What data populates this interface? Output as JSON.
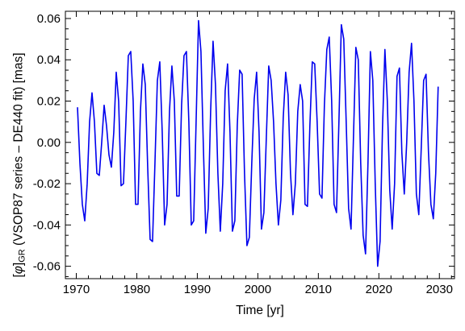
{
  "chart_data": {
    "type": "line",
    "title": "",
    "xlabel": "Time [yr]",
    "ylabel": {
      "prefix": "[",
      "symbol": "φ",
      "suffix": "]",
      "subscript": "GR",
      "rest": " (VSOP87 series – DE440 fit) [mas]"
    },
    "xlim": [
      1968.2,
      2032.5
    ],
    "ylim": [
      -0.066,
      0.0635
    ],
    "xticks": [
      1970,
      1980,
      1990,
      2000,
      2010,
      2020,
      2030
    ],
    "yticks": [
      -0.06,
      -0.04,
      -0.02,
      0.0,
      0.02,
      0.04,
      0.06
    ],
    "ytick_labels": [
      "-0.06",
      "-0.04",
      "-0.02",
      "0.00",
      "0.02",
      "0.04",
      "0.06"
    ],
    "grid": false,
    "legend": "none",
    "color": "#0000ee",
    "series": [
      {
        "points": [
          [
            1970.2,
            0.017
          ],
          [
            1970.6,
            -0.01
          ],
          [
            1971.0,
            -0.03
          ],
          [
            1971.4,
            -0.038
          ],
          [
            1971.8,
            -0.02
          ],
          [
            1972.2,
            0.01
          ],
          [
            1972.6,
            0.024
          ],
          [
            1973.0,
            0.01
          ],
          [
            1973.4,
            -0.015
          ],
          [
            1973.8,
            -0.016
          ],
          [
            1974.2,
            0.0
          ],
          [
            1974.6,
            0.018
          ],
          [
            1975.0,
            0.008
          ],
          [
            1975.4,
            -0.006
          ],
          [
            1975.8,
            -0.012
          ],
          [
            1976.2,
            0.005
          ],
          [
            1976.6,
            0.034
          ],
          [
            1977.0,
            0.02
          ],
          [
            1977.4,
            -0.021
          ],
          [
            1977.8,
            -0.02
          ],
          [
            1978.2,
            0.01
          ],
          [
            1978.6,
            0.042
          ],
          [
            1979.0,
            0.044
          ],
          [
            1979.4,
            0.02
          ],
          [
            1979.8,
            -0.03
          ],
          [
            1980.2,
            -0.03
          ],
          [
            1980.6,
            0.015
          ],
          [
            1981.0,
            0.038
          ],
          [
            1981.4,
            0.028
          ],
          [
            1981.8,
            -0.012
          ],
          [
            1982.2,
            -0.047
          ],
          [
            1982.6,
            -0.048
          ],
          [
            1983.0,
            -0.01
          ],
          [
            1983.4,
            0.03
          ],
          [
            1983.8,
            0.039
          ],
          [
            1984.2,
            0.005
          ],
          [
            1984.6,
            -0.04
          ],
          [
            1985.0,
            -0.03
          ],
          [
            1985.4,
            0.015
          ],
          [
            1985.8,
            0.037
          ],
          [
            1986.2,
            0.02
          ],
          [
            1986.6,
            -0.026
          ],
          [
            1987.0,
            -0.026
          ],
          [
            1987.4,
            0.018
          ],
          [
            1987.8,
            0.042
          ],
          [
            1988.2,
            0.044
          ],
          [
            1988.6,
            0.01
          ],
          [
            1989.0,
            -0.04
          ],
          [
            1989.4,
            -0.038
          ],
          [
            1989.8,
            0.01
          ],
          [
            1990.2,
            0.059
          ],
          [
            1990.6,
            0.044
          ],
          [
            1991.0,
            -0.002
          ],
          [
            1991.4,
            -0.044
          ],
          [
            1991.8,
            -0.032
          ],
          [
            1992.2,
            0.015
          ],
          [
            1992.6,
            0.049
          ],
          [
            1993.0,
            0.028
          ],
          [
            1993.4,
            -0.015
          ],
          [
            1993.8,
            -0.043
          ],
          [
            1994.2,
            -0.02
          ],
          [
            1994.6,
            0.025
          ],
          [
            1995.0,
            0.038
          ],
          [
            1995.4,
            0.005
          ],
          [
            1995.8,
            -0.043
          ],
          [
            1996.2,
            -0.038
          ],
          [
            1996.6,
            0.008
          ],
          [
            1997.0,
            0.035
          ],
          [
            1997.4,
            0.033
          ],
          [
            1997.8,
            -0.015
          ],
          [
            1998.2,
            -0.05
          ],
          [
            1998.6,
            -0.046
          ],
          [
            1999.0,
            -0.01
          ],
          [
            1999.4,
            0.021
          ],
          [
            1999.8,
            0.034
          ],
          [
            2000.2,
            0.005
          ],
          [
            2000.6,
            -0.042
          ],
          [
            2001.0,
            -0.034
          ],
          [
            2001.4,
            0.002
          ],
          [
            2001.8,
            0.037
          ],
          [
            2002.2,
            0.03
          ],
          [
            2002.6,
            0.01
          ],
          [
            2003.0,
            -0.02
          ],
          [
            2003.4,
            -0.04
          ],
          [
            2003.8,
            -0.028
          ],
          [
            2004.2,
            0.012
          ],
          [
            2004.6,
            0.034
          ],
          [
            2005.0,
            0.023
          ],
          [
            2005.4,
            -0.015
          ],
          [
            2005.8,
            -0.035
          ],
          [
            2006.2,
            -0.02
          ],
          [
            2006.6,
            0.015
          ],
          [
            2007.0,
            0.028
          ],
          [
            2007.4,
            0.02
          ],
          [
            2007.8,
            -0.03
          ],
          [
            2008.2,
            -0.031
          ],
          [
            2008.6,
            0.008
          ],
          [
            2009.0,
            0.039
          ],
          [
            2009.4,
            0.038
          ],
          [
            2009.8,
            0.01
          ],
          [
            2010.2,
            -0.025
          ],
          [
            2010.6,
            -0.027
          ],
          [
            2011.0,
            0.018
          ],
          [
            2011.4,
            0.045
          ],
          [
            2011.8,
            0.051
          ],
          [
            2012.2,
            0.02
          ],
          [
            2012.6,
            -0.03
          ],
          [
            2013.0,
            -0.034
          ],
          [
            2013.4,
            0.01
          ],
          [
            2013.8,
            0.057
          ],
          [
            2014.2,
            0.05
          ],
          [
            2014.6,
            0.01
          ],
          [
            2015.0,
            -0.032
          ],
          [
            2015.4,
            -0.042
          ],
          [
            2015.8,
            0.002
          ],
          [
            2016.2,
            0.046
          ],
          [
            2016.6,
            0.04
          ],
          [
            2017.0,
            -0.01
          ],
          [
            2017.4,
            -0.045
          ],
          [
            2017.8,
            -0.054
          ],
          [
            2018.2,
            -0.01
          ],
          [
            2018.6,
            0.044
          ],
          [
            2019.0,
            0.03
          ],
          [
            2019.4,
            -0.02
          ],
          [
            2019.8,
            -0.06
          ],
          [
            2020.2,
            -0.048
          ],
          [
            2020.6,
            0.007
          ],
          [
            2021.0,
            0.045
          ],
          [
            2021.4,
            0.02
          ],
          [
            2021.8,
            -0.023
          ],
          [
            2022.2,
            -0.042
          ],
          [
            2022.6,
            -0.02
          ],
          [
            2023.0,
            0.032
          ],
          [
            2023.4,
            0.036
          ],
          [
            2023.8,
            -0.005
          ],
          [
            2024.2,
            -0.025
          ],
          [
            2024.6,
            0.0
          ],
          [
            2025.0,
            0.034
          ],
          [
            2025.4,
            0.048
          ],
          [
            2025.8,
            0.02
          ],
          [
            2026.2,
            -0.025
          ],
          [
            2026.6,
            -0.035
          ],
          [
            2027.0,
            -0.003
          ],
          [
            2027.4,
            0.03
          ],
          [
            2027.8,
            0.033
          ],
          [
            2028.2,
            -0.005
          ],
          [
            2028.6,
            -0.03
          ],
          [
            2029.0,
            -0.037
          ],
          [
            2029.4,
            -0.015
          ],
          [
            2029.8,
            0.027
          ]
        ]
      }
    ]
  }
}
